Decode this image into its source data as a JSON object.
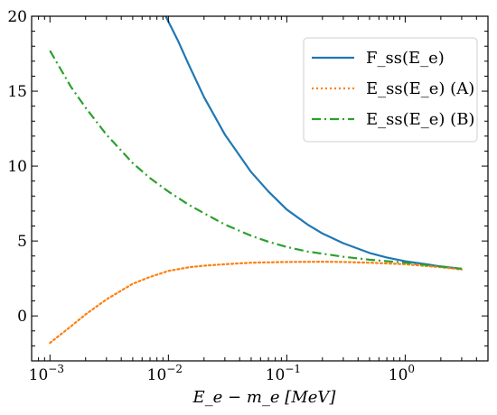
{
  "chart_data": {
    "type": "line",
    "xscale": "log",
    "xlim": [
      0.0007,
      5
    ],
    "ylim": [
      -3,
      20
    ],
    "xticks": [
      0.001,
      0.01,
      0.1,
      1
    ],
    "xtick_labels": [
      "10^-3",
      "10^-2",
      "10^-1",
      "10^0"
    ],
    "yticks": [
      0,
      5,
      10,
      15,
      20
    ],
    "ytick_labels": [
      "0",
      "5",
      "10",
      "15",
      "20"
    ],
    "xlabel": "E_e − m_e [MeV]",
    "ylabel": "",
    "title": "",
    "grid": false,
    "legend_position": "top-right",
    "series": [
      {
        "name": "F_ss(E_e)",
        "color": "#1f77b4",
        "style": "solid",
        "x": [
          0.0095,
          0.012,
          0.015,
          0.02,
          0.03,
          0.05,
          0.07,
          0.1,
          0.15,
          0.2,
          0.3,
          0.5,
          0.7,
          1.0,
          1.5,
          2.0,
          3.0
        ],
        "y": [
          20.0,
          18.4,
          16.7,
          14.6,
          12.1,
          9.6,
          8.3,
          7.1,
          6.1,
          5.5,
          4.85,
          4.2,
          3.9,
          3.65,
          3.45,
          3.3,
          3.15
        ]
      },
      {
        "name": "E_ss(E_e) (A)",
        "color": "#ff7f0e",
        "style": "dotted",
        "x": [
          0.001,
          0.0015,
          0.002,
          0.003,
          0.005,
          0.007,
          0.01,
          0.015,
          0.02,
          0.03,
          0.05,
          0.1,
          0.2,
          0.3,
          0.5,
          1.0,
          2.0,
          3.0
        ],
        "y": [
          -1.8,
          -0.7,
          0.1,
          1.1,
          2.15,
          2.6,
          3.0,
          3.25,
          3.35,
          3.45,
          3.55,
          3.6,
          3.62,
          3.6,
          3.55,
          3.45,
          3.25,
          3.1
        ]
      },
      {
        "name": "E_ss(E_e) (B)",
        "color": "#2ca02c",
        "style": "dashdot",
        "x": [
          0.001,
          0.0015,
          0.002,
          0.003,
          0.005,
          0.007,
          0.01,
          0.015,
          0.02,
          0.03,
          0.05,
          0.07,
          0.1,
          0.15,
          0.2,
          0.3,
          0.5,
          1.0,
          2.0,
          3.0
        ],
        "y": [
          17.7,
          15.3,
          13.9,
          12.1,
          10.2,
          9.2,
          8.3,
          7.4,
          6.85,
          6.1,
          5.35,
          4.95,
          4.6,
          4.3,
          4.15,
          3.95,
          3.75,
          3.55,
          3.3,
          3.15
        ]
      }
    ]
  }
}
